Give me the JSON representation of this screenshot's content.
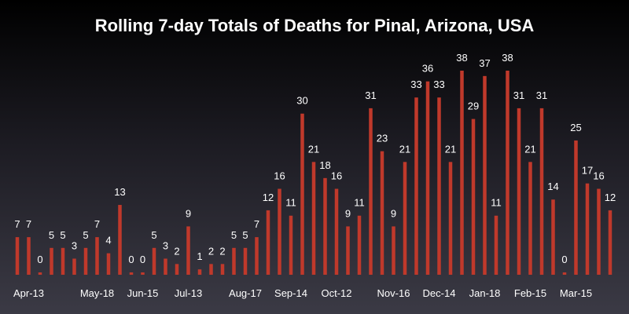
{
  "chart_data": {
    "type": "bar",
    "title": "Rolling 7-day Totals of Deaths for Pinal, Arizona, USA",
    "xlabel": "",
    "ylabel": "",
    "ylim": [
      0,
      38
    ],
    "grid": false,
    "bar_color": "#c0392b",
    "text_color": "#ffffff",
    "values": [
      7,
      7,
      0,
      5,
      5,
      3,
      5,
      7,
      4,
      13,
      0,
      0,
      5,
      3,
      2,
      9,
      1,
      2,
      2,
      5,
      5,
      7,
      12,
      16,
      11,
      30,
      21,
      18,
      16,
      9,
      11,
      31,
      23,
      9,
      21,
      33,
      36,
      33,
      21,
      38,
      29,
      37,
      11,
      38,
      31,
      21,
      31,
      14,
      0,
      25,
      17,
      16,
      12
    ],
    "x_ticks": [
      {
        "index": 1,
        "label": "Apr-13"
      },
      {
        "index": 7,
        "label": "May-18"
      },
      {
        "index": 11,
        "label": "Jun-15"
      },
      {
        "index": 15,
        "label": "Jul-13"
      },
      {
        "index": 20,
        "label": "Aug-17"
      },
      {
        "index": 24,
        "label": "Sep-14"
      },
      {
        "index": 28,
        "label": "Oct-12"
      },
      {
        "index": 33,
        "label": "Nov-16"
      },
      {
        "index": 37,
        "label": "Dec-14"
      },
      {
        "index": 41,
        "label": "Jan-18"
      },
      {
        "index": 45,
        "label": "Feb-15"
      },
      {
        "index": 49,
        "label": "Mar-15"
      }
    ]
  }
}
